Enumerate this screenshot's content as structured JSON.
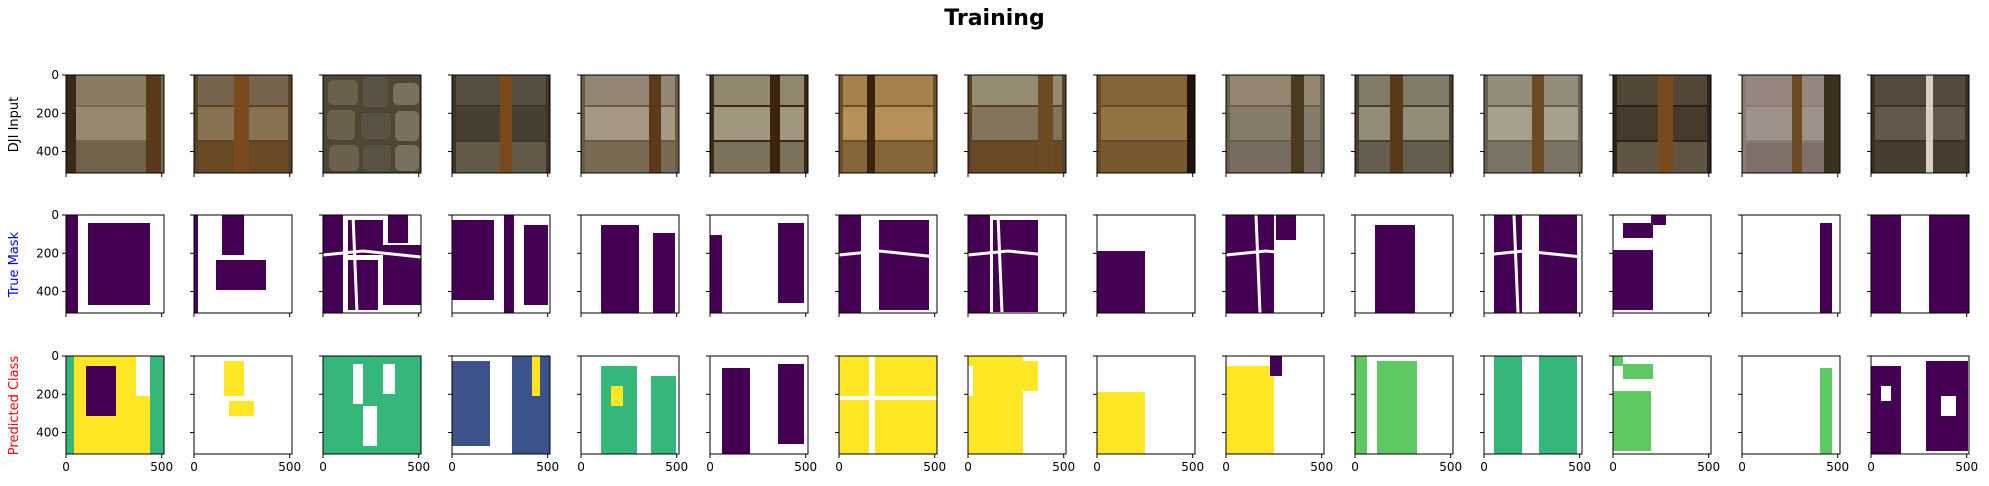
{
  "chart_data": {
    "type": "image-grid",
    "title": "Training",
    "rows": [
      {
        "label": "DJI Input",
        "label_color": "#000000"
      },
      {
        "label": "True Mask",
        "label_color": "#0000ff"
      },
      {
        "label": "Predicted Class",
        "label_color": "#ff0000"
      }
    ],
    "columns": 15,
    "x_ticks": [
      0,
      500
    ],
    "y_ticks": [
      0,
      200,
      400
    ],
    "xlim": [
      0,
      512
    ],
    "ylim": [
      512,
      0
    ],
    "colors": {
      "mask_purple": "#440154",
      "viridis_yellow": "#fde725",
      "viridis_green": "#35b779",
      "viridis_lightgreen": "#5ec962",
      "viridis_blue": "#3b528b",
      "viridis_teal": "#21918c",
      "tray_brown": "#6b4a24"
    }
  }
}
